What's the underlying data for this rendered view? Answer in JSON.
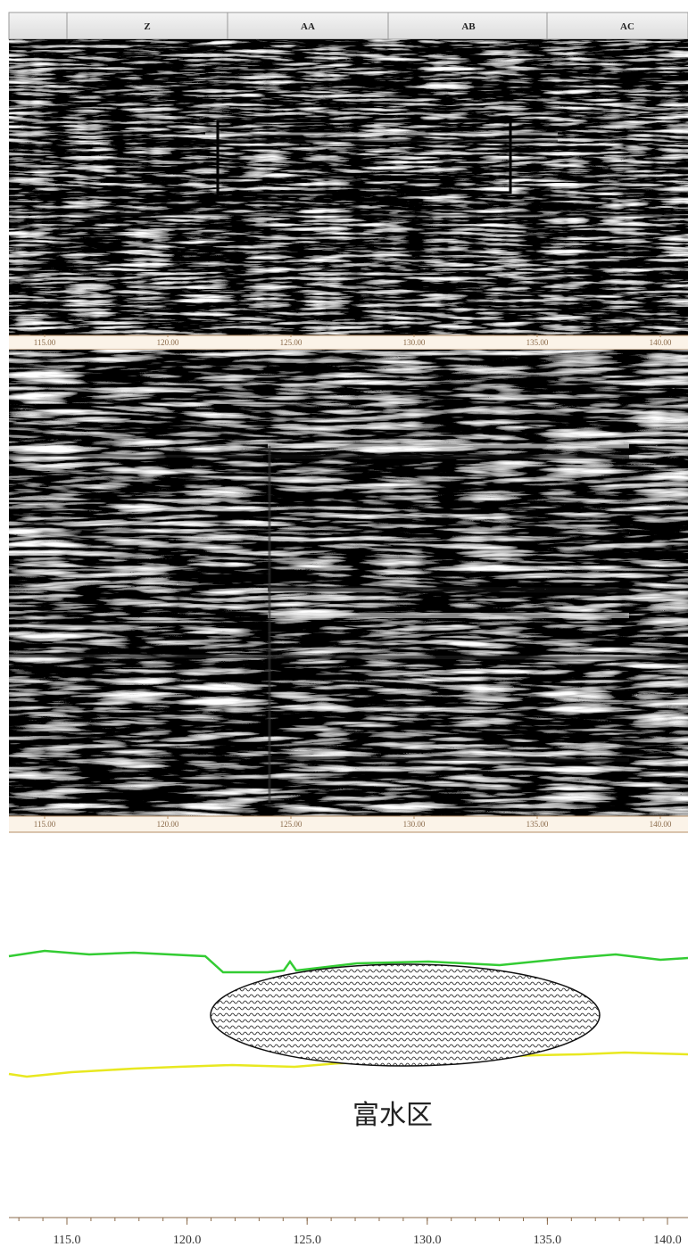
{
  "header": {
    "columns": [
      "Z",
      "AA",
      "AB",
      "AC"
    ]
  },
  "top_profile": {
    "ticks": [
      "115.00",
      "120.00",
      "125.00",
      "130.00",
      "135.00",
      "140.00"
    ]
  },
  "middle_profile": {
    "ticks": [
      "115.00",
      "120.00",
      "125.00",
      "130.00",
      "135.00",
      "140.00"
    ]
  },
  "bottom_section": {
    "zone_label": "富水区",
    "ticks": [
      "115.0",
      "120.0",
      "125.0",
      "130.0",
      "135.0",
      "140.0"
    ]
  }
}
